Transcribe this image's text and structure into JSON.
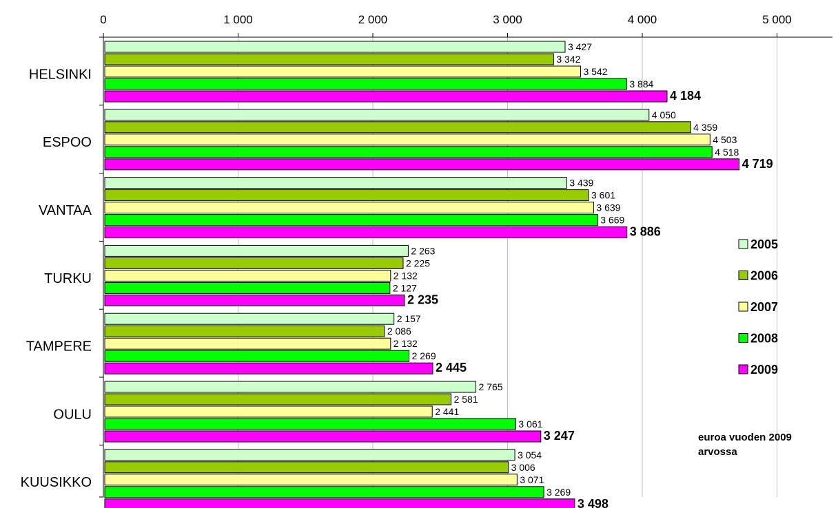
{
  "chart_data": {
    "type": "bar",
    "orientation": "horizontal",
    "categories": [
      "HELSINKI",
      "ESPOO",
      "VANTAA",
      "TURKU",
      "TAMPERE",
      "OULU",
      "KUUSIKKO"
    ],
    "series": [
      {
        "name": "2005",
        "color": "#ccffcc",
        "values": [
          3427,
          4050,
          3439,
          2263,
          2157,
          2765,
          3054
        ]
      },
      {
        "name": "2006",
        "color": "#99cc00",
        "values": [
          3342,
          4359,
          3601,
          2225,
          2086,
          2581,
          3006
        ]
      },
      {
        "name": "2007",
        "color": "#ffff99",
        "values": [
          3542,
          4503,
          3639,
          2132,
          2132,
          2441,
          3071
        ]
      },
      {
        "name": "2008",
        "color": "#00ff00",
        "values": [
          3884,
          4518,
          3669,
          2127,
          2269,
          3061,
          3269
        ]
      },
      {
        "name": "2009",
        "color": "#ff00ff",
        "values": [
          4184,
          4719,
          3886,
          2235,
          2445,
          3247,
          3498
        ]
      }
    ],
    "data_labels": [
      [
        "3 427",
        "4 050",
        "3 439",
        "2 263",
        "2 157",
        "2 765",
        "3 054"
      ],
      [
        "3 342",
        "4 359",
        "3 601",
        "2 225",
        "2 086",
        "2 581",
        "3 006"
      ],
      [
        "3 542",
        "4 503",
        "3 639",
        "2 132",
        "2 132",
        "2 441",
        "3 071"
      ],
      [
        "3 884",
        "4 518",
        "3 669",
        "2 127",
        "2 269",
        "3 061",
        "3 269"
      ],
      [
        "4 184",
        "4 719",
        "3 886",
        "2 235",
        "2 445",
        "3 247",
        "3 498"
      ]
    ],
    "xlim": [
      0,
      5000
    ],
    "xticks": [
      0,
      1000,
      2000,
      3000,
      4000,
      5000
    ],
    "xtick_labels": [
      "0",
      "1 000",
      "2 000",
      "3 000",
      "4 000",
      "5 000"
    ],
    "x_axis_position": "top",
    "grid": true,
    "legend_position": "right",
    "annotation": [
      "euroa vuoden 2009",
      "arvossa"
    ]
  }
}
